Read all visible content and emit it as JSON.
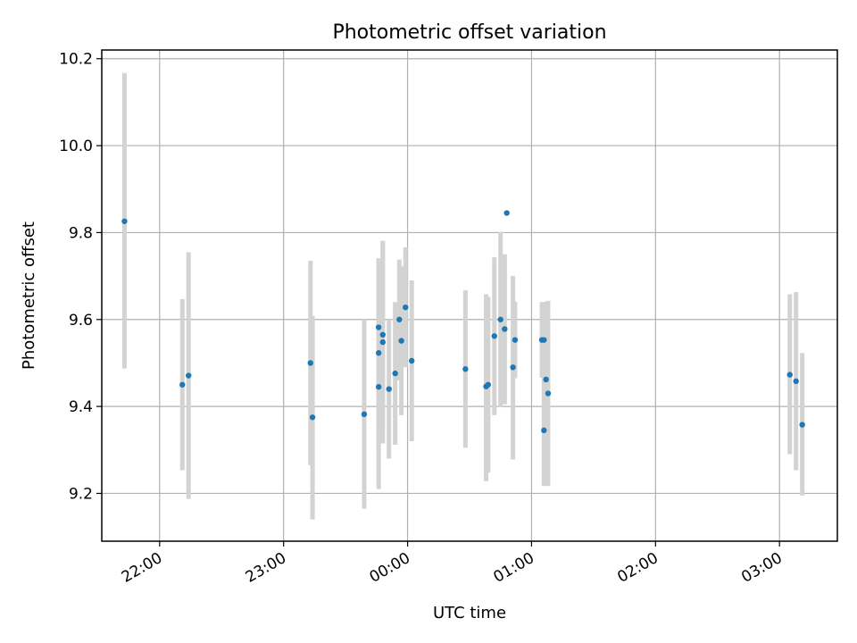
{
  "chart_data": {
    "type": "scatter",
    "title": "Photometric offset variation",
    "xlabel": "UTC time",
    "ylabel": "Photometric offset",
    "xlim": [
      "21:32",
      "03:28"
    ],
    "ylim": [
      9.09,
      10.22
    ],
    "x_ticks": [
      "22:00",
      "23:00",
      "00:00",
      "01:00",
      "02:00",
      "03:00"
    ],
    "y_ticks": [
      9.2,
      9.4,
      9.6,
      9.8,
      10.0,
      10.2
    ],
    "y_tick_labels": [
      "9.2",
      "9.4",
      "9.6",
      "9.8",
      "10.0",
      "10.2"
    ],
    "grid": true,
    "marker_color": "#1f77b4",
    "errorbar_color": "#d3d3d3",
    "series": [
      {
        "points": [
          {
            "x": "21:43",
            "y": 9.826,
            "ylow": 9.487,
            "yhigh": 10.167
          },
          {
            "x": "22:11",
            "y": 9.45,
            "ylow": 9.253,
            "yhigh": 9.647
          },
          {
            "x": "22:14",
            "y": 9.471,
            "ylow": 9.187,
            "yhigh": 9.755
          },
          {
            "x": "23:13",
            "y": 9.5,
            "ylow": 9.265,
            "yhigh": 9.735
          },
          {
            "x": "23:14",
            "y": 9.375,
            "ylow": 9.14,
            "yhigh": 9.608
          },
          {
            "x": "23:39",
            "y": 9.382,
            "ylow": 9.165,
            "yhigh": 9.6
          },
          {
            "x": "23:46",
            "y": 9.582,
            "ylow": 9.422,
            "yhigh": 9.741
          },
          {
            "x": "23:46",
            "y": 9.523,
            "ylow": 9.31,
            "yhigh": 9.737
          },
          {
            "x": "23:46",
            "y": 9.445,
            "ylow": 9.21,
            "yhigh": 9.68
          },
          {
            "x": "23:48",
            "y": 9.548,
            "ylow": 9.315,
            "yhigh": 9.781
          },
          {
            "x": "23:48",
            "y": 9.565,
            "ylow": 9.35,
            "yhigh": 9.78
          },
          {
            "x": "23:51",
            "y": 9.44,
            "ylow": 9.28,
            "yhigh": 9.6
          },
          {
            "x": "23:54",
            "y": 9.476,
            "ylow": 9.312,
            "yhigh": 9.64
          },
          {
            "x": "23:56",
            "y": 9.6,
            "ylow": 9.46,
            "yhigh": 9.738
          },
          {
            "x": "23:57",
            "y": 9.551,
            "ylow": 9.38,
            "yhigh": 9.722
          },
          {
            "x": "23:59",
            "y": 9.628,
            "ylow": 9.49,
            "yhigh": 9.766
          },
          {
            "x": "00:02",
            "y": 9.505,
            "ylow": 9.32,
            "yhigh": 9.69
          },
          {
            "x": "00:28",
            "y": 9.486,
            "ylow": 9.305,
            "yhigh": 9.667
          },
          {
            "x": "00:38",
            "y": 9.446,
            "ylow": 9.228,
            "yhigh": 9.658
          },
          {
            "x": "00:39",
            "y": 9.45,
            "ylow": 9.248,
            "yhigh": 9.652
          },
          {
            "x": "00:42",
            "y": 9.562,
            "ylow": 9.38,
            "yhigh": 9.743
          },
          {
            "x": "00:45",
            "y": 9.6,
            "ylow": 9.398,
            "yhigh": 9.802
          },
          {
            "x": "00:47",
            "y": 9.578,
            "ylow": 9.405,
            "yhigh": 9.75
          },
          {
            "x": "00:48",
            "y": 9.845,
            "ylow": 9.845,
            "yhigh": 9.845
          },
          {
            "x": "00:51",
            "y": 9.49,
            "ylow": 9.278,
            "yhigh": 9.7
          },
          {
            "x": "00:52",
            "y": 9.553,
            "ylow": 9.465,
            "yhigh": 9.641
          },
          {
            "x": "01:05",
            "y": 9.553,
            "ylow": 9.466,
            "yhigh": 9.64
          },
          {
            "x": "01:06",
            "y": 9.553,
            "ylow": 9.466,
            "yhigh": 9.64
          },
          {
            "x": "01:06",
            "y": 9.345,
            "ylow": 9.217,
            "yhigh": 9.473
          },
          {
            "x": "01:07",
            "y": 9.462,
            "ylow": 9.217,
            "yhigh": 9.64
          },
          {
            "x": "01:08",
            "y": 9.43,
            "ylow": 9.217,
            "yhigh": 9.643
          },
          {
            "x": "03:05",
            "y": 9.473,
            "ylow": 9.29,
            "yhigh": 9.658
          },
          {
            "x": "03:08",
            "y": 9.458,
            "ylow": 9.253,
            "yhigh": 9.663
          },
          {
            "x": "03:11",
            "y": 9.358,
            "ylow": 9.195,
            "yhigh": 9.523
          }
        ]
      }
    ]
  }
}
